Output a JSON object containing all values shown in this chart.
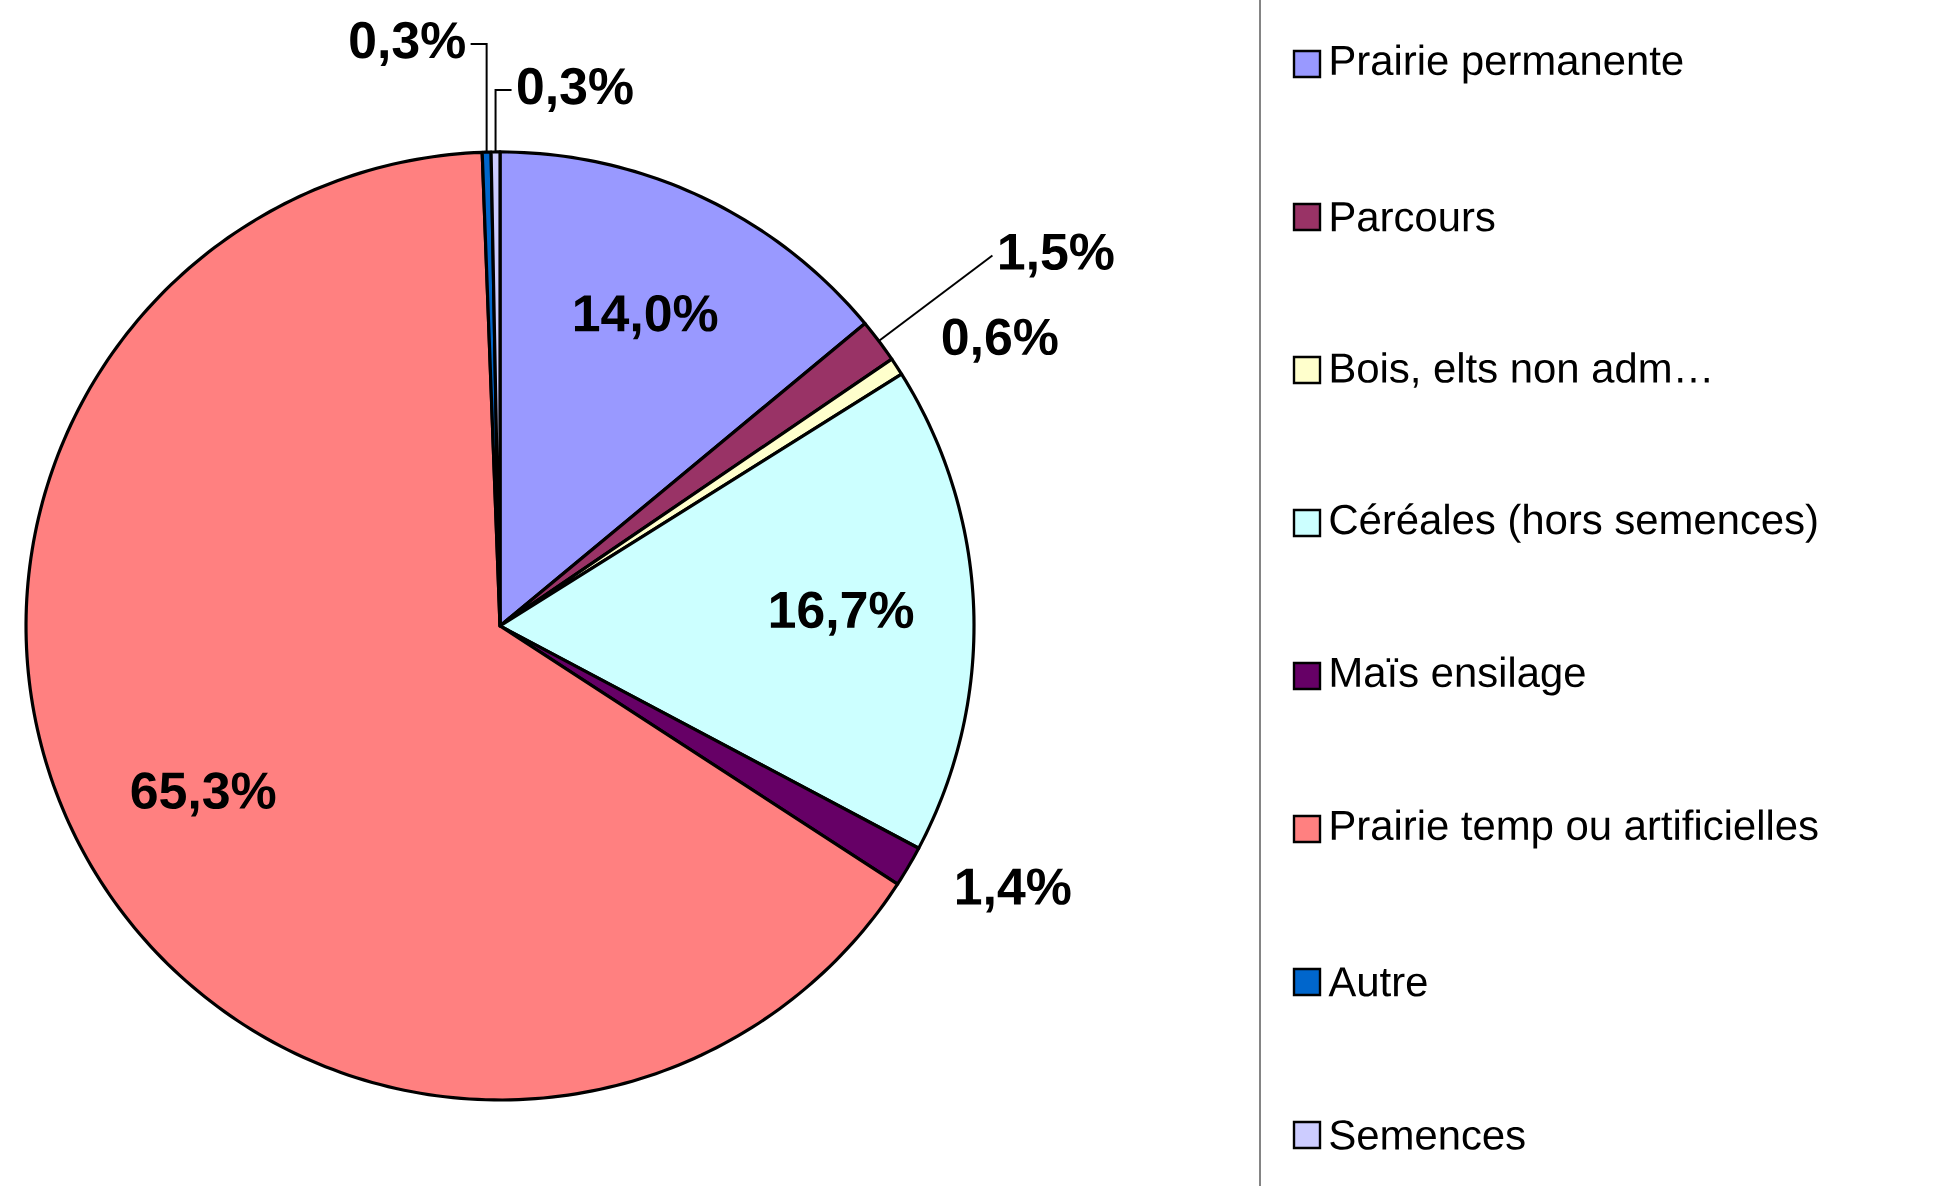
{
  "chart_data": {
    "type": "pie",
    "categories": [
      "Prairie permanente",
      "Parcours",
      "Bois, elts non adm…",
      "Céréales (hors semences)",
      "Maïs ensilage",
      "Prairie temp ou artificielles",
      "Autre",
      "Semences"
    ],
    "values": [
      14.0,
      1.5,
      0.6,
      16.7,
      1.4,
      65.3,
      0.3,
      0.3
    ],
    "colors": [
      "#9999ff",
      "#993366",
      "#ffffcc",
      "#ccffff",
      "#660066",
      "#ff8080",
      "#0066cc",
      "#ccccff"
    ],
    "value_labels": [
      "14,0%",
      "1,5%",
      "0,6%",
      "16,7%",
      "1,4%",
      "65,3%",
      "0,3%",
      "0,3%"
    ],
    "legend": "right"
  }
}
